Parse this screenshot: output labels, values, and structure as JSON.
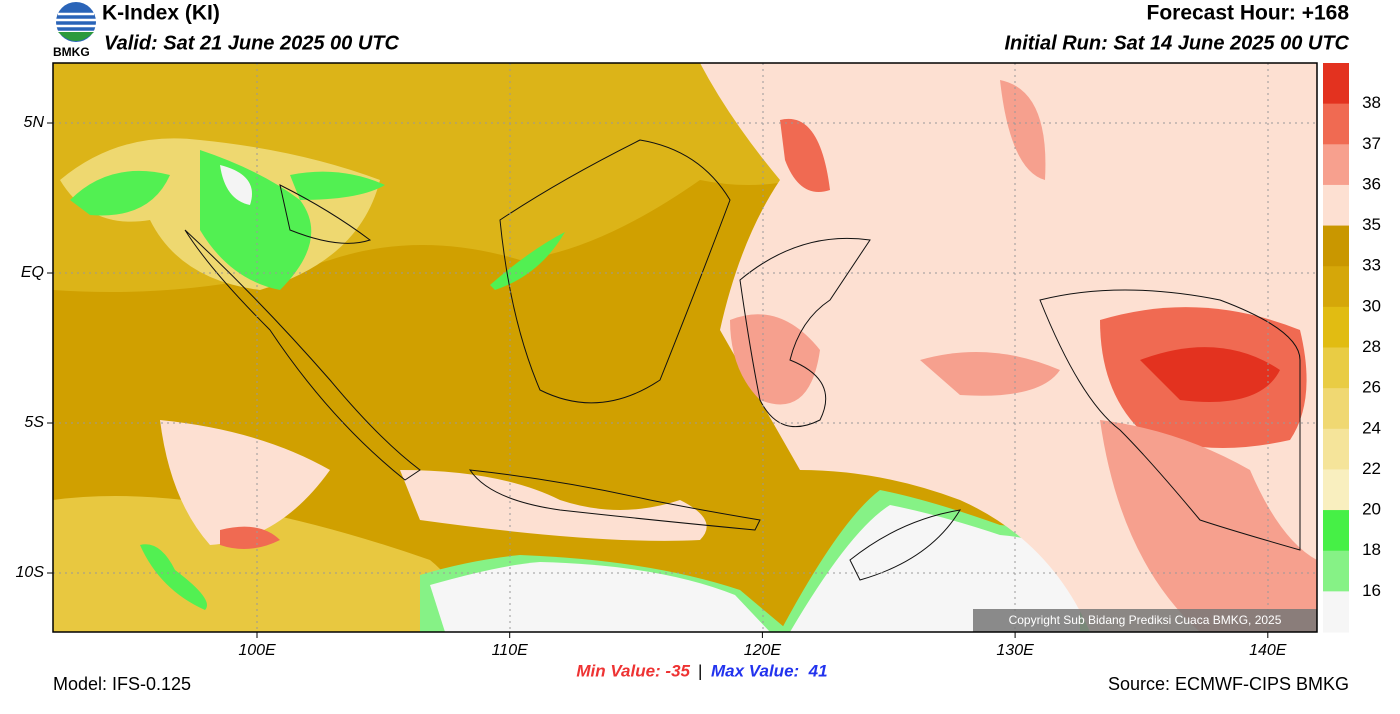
{
  "header": {
    "title": "K-Index (KI)",
    "valid": "Valid: Sat 21 June 2025 00 UTC",
    "forecast_hour": "Forecast Hour: +168",
    "initial_run": "Initial Run: Sat 14 June 2025 00 UTC",
    "logo_text": "BMKG"
  },
  "map": {
    "lat_labels": [
      "5N",
      "EQ",
      "5S",
      "10S"
    ],
    "lon_labels": [
      "100E",
      "110E",
      "120E",
      "130E",
      "140E"
    ],
    "copyright": "Copyright Sub Bidang Prediksi Cuaca BMKG, 2025"
  },
  "colorbar": {
    "labels": [
      38,
      37,
      36,
      35,
      33,
      30,
      28,
      26,
      24,
      22,
      20,
      18,
      16
    ],
    "colors": [
      "#e3321f",
      "#f06a52",
      "#f7a08e",
      "#fde0d2",
      "#c99700",
      "#d5a709",
      "#e1bc12",
      "#e9cc44",
      "#f0d872",
      "#f5e49a",
      "#f9efbf",
      "#46f046",
      "#86f286",
      "#f6f6f6"
    ]
  },
  "footer": {
    "model": "Model: IFS-0.125",
    "min_value": "Min Value: -35",
    "separator": "|",
    "max_value": "Max Value:  41",
    "source": "Source: ECMWF-CIPS BMKG"
  }
}
